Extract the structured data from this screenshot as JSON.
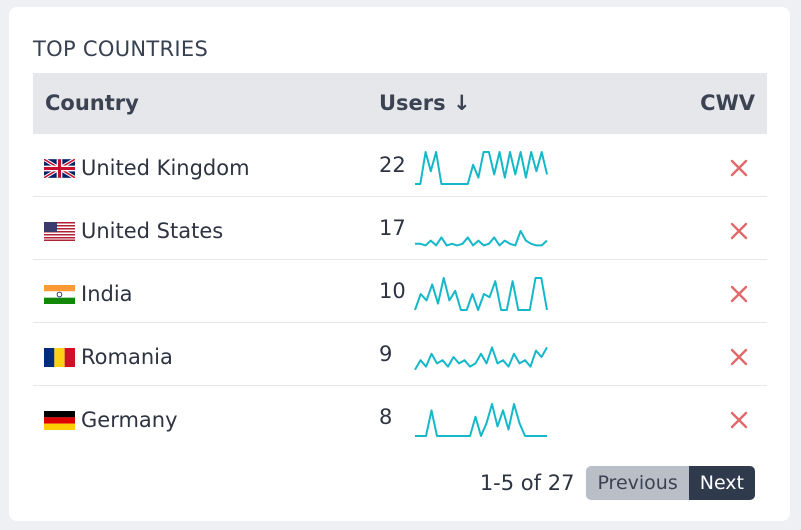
{
  "card": {
    "title": "TOP COUNTRIES"
  },
  "table": {
    "headers": {
      "country": "Country",
      "users": "Users ↓",
      "cwv": "CWV"
    },
    "rows": [
      {
        "flag": "uk-flag-icon",
        "country": "United Kingdom",
        "users": "22",
        "cwv": "fail-x-icon",
        "trend": [
          0,
          0,
          1,
          0.4,
          1,
          0,
          0,
          0,
          0,
          0,
          0,
          0.6,
          0.2,
          1,
          1,
          0.3,
          1,
          0.2,
          1,
          0.3,
          1,
          0.2,
          1,
          0.4,
          1,
          0.3
        ]
      },
      {
        "flag": "us-flag-icon",
        "country": "United States",
        "users": "17",
        "cwv": "fail-x-icon",
        "trend": [
          0.1,
          0.1,
          0.05,
          0.2,
          0.05,
          0.3,
          0.05,
          0.1,
          0.05,
          0.1,
          0.3,
          0.05,
          0.2,
          0.05,
          0.1,
          0.3,
          0.05,
          0.2,
          0.1,
          0.05,
          0.5,
          0.2,
          0.1,
          0.05,
          0.05,
          0.2
        ]
      },
      {
        "flag": "in-flag-icon",
        "country": "India",
        "users": "10",
        "cwv": "fail-x-icon",
        "trend": [
          0,
          0.5,
          0.3,
          0.8,
          0.2,
          1,
          0.3,
          0.6,
          0,
          0,
          0.5,
          0,
          0.5,
          0.4,
          0.9,
          0,
          0,
          0.9,
          0,
          0,
          0,
          1,
          1,
          0
        ]
      },
      {
        "flag": "ro-flag-icon",
        "country": "Romania",
        "users": "9",
        "cwv": "fail-x-icon",
        "trend": [
          0.1,
          0.4,
          0.2,
          0.6,
          0.3,
          0.4,
          0.2,
          0.5,
          0.3,
          0.4,
          0.2,
          0.3,
          0.6,
          0.3,
          0.8,
          0.3,
          0.4,
          0.2,
          0.6,
          0.3,
          0.4,
          0.2,
          0.7,
          0.5,
          0.8
        ]
      },
      {
        "flag": "de-flag-icon",
        "country": "Germany",
        "users": "8",
        "cwv": "fail-x-icon",
        "trend": [
          0,
          0,
          0,
          0.8,
          0,
          0,
          0,
          0,
          0,
          0,
          0,
          0.6,
          0,
          0.4,
          1,
          0.3,
          0.8,
          0.2,
          1,
          0.4,
          0,
          0,
          0,
          0,
          0
        ]
      }
    ]
  },
  "pagination": {
    "info": "1-5 of 27",
    "previous": "Previous",
    "next": "Next"
  },
  "colors": {
    "spark": "#14b8c9",
    "cwv_fail": "#e06a6a"
  }
}
